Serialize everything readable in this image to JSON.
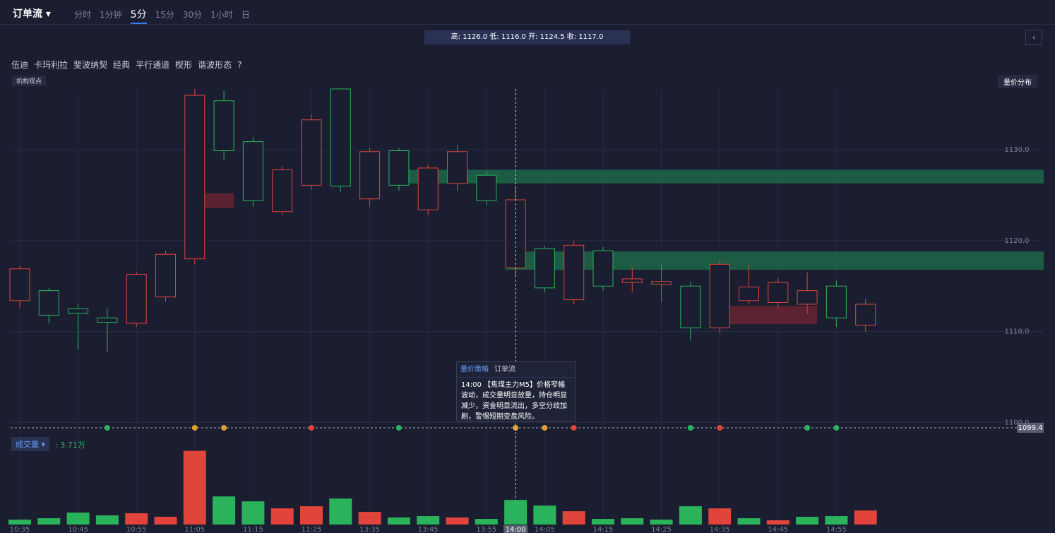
{
  "toolbar": {
    "title": "订单流",
    "periods": [
      "分时",
      "1分钟",
      "5分",
      "15分",
      "30分",
      "1小时",
      "日"
    ],
    "active": 2
  },
  "ohlc_text": "高: 1126.0 低: 1116.0 开: 1124.5 收: 1117.0",
  "tools": [
    "伍迪",
    "卡玛利拉",
    "斐波纳契",
    "经典",
    "平行通道",
    "楔形",
    "谐波形态"
  ],
  "badge": "机构观点",
  "distribution_button": "量价分布",
  "chart_data": [
    {
      "type": "candlestick",
      "categories": [
        "10:35",
        null,
        "10:45",
        null,
        "10:55",
        null,
        "11:05",
        null,
        "11:15",
        null,
        "11:25",
        null,
        "13:35",
        null,
        "13:45",
        null,
        "13:55",
        "14:00",
        "14:05",
        null,
        "14:15",
        null,
        "14:25",
        null,
        "14:35",
        null,
        "14:45",
        null,
        "14:55",
        null
      ],
      "open": [
        1116.9,
        1111.8,
        1112.0,
        1111.0,
        1116.3,
        1118.5,
        1136.0,
        1129.9,
        1124.4,
        1127.8,
        1133.3,
        1126.0,
        1129.8,
        1126.1,
        1128.0,
        1129.8,
        1124.4,
        1124.5,
        1114.8,
        1119.5,
        1115.0,
        1115.8,
        1115.5,
        1110.4,
        1117.4,
        1114.9,
        1115.4,
        1114.5,
        1111.5,
        1113.0
      ],
      "high": [
        1117.2,
        1114.8,
        1113.0,
        1112.5,
        1116.6,
        1118.9,
        1136.7,
        1136.5,
        1131.4,
        1128.2,
        1133.9,
        1136.8,
        1130.2,
        1130.2,
        1128.4,
        1130.5,
        1127.6,
        1126.0,
        1119.4,
        1120.0,
        1119.3,
        1117.0,
        1117.5,
        1115.5,
        1118.0,
        1117.3,
        1115.9,
        1116.5,
        1115.6,
        1113.6
      ],
      "low": [
        1112.6,
        1110.9,
        1108.0,
        1107.8,
        1110.5,
        1113.3,
        1117.4,
        1128.9,
        1123.8,
        1122.8,
        1125.6,
        1125.4,
        1123.7,
        1125.5,
        1122.8,
        1125.5,
        1123.9,
        1116.0,
        1114.3,
        1113.0,
        1114.5,
        1114.3,
        1113.2,
        1109.0,
        1109.8,
        1113.0,
        1112.5,
        1111.9,
        1110.5,
        1110.0
      ],
      "close": [
        1113.4,
        1114.5,
        1112.5,
        1111.5,
        1110.9,
        1113.8,
        1118.0,
        1135.4,
        1130.9,
        1123.2,
        1126.1,
        1136.7,
        1124.6,
        1129.9,
        1123.4,
        1126.3,
        1127.2,
        1117.0,
        1119.1,
        1113.5,
        1118.9,
        1115.4,
        1115.2,
        1115.0,
        1110.4,
        1113.4,
        1113.2,
        1113.0,
        1115.0,
        1110.7
      ],
      "up_color": "#2bb35b",
      "down_color": "#e0443a",
      "ylim": [
        1098.7,
        1136.7
      ],
      "yticks": [
        {
          "value": 1100,
          "label": "1100.0"
        },
        {
          "value": 1110,
          "label": "1110.0"
        },
        {
          "value": 1120,
          "label": "1120.0"
        },
        {
          "value": 1130,
          "label": "1130.0"
        }
      ],
      "last_price": 1099.4,
      "zones": [
        {
          "from": 1126.3,
          "to": 1127.8,
          "start": 13,
          "end": 29,
          "color": "#1e6b4a"
        },
        {
          "from": 1116.8,
          "to": 1118.8,
          "start": 17,
          "end": 29,
          "color": "#1e6b4a"
        },
        {
          "from": 1123.6,
          "to": 1125.2,
          "start": 6,
          "end": 7,
          "color": "#6b2332"
        },
        {
          "from": 1110.8,
          "to": 1112.8,
          "start": 24,
          "end": 27,
          "color": "#6b2332"
        }
      ],
      "signals": [
        {
          "index": 3,
          "color": "#2bb35b"
        },
        {
          "index": 6,
          "color": "#e0a030"
        },
        {
          "index": 7,
          "color": "#e0a030"
        },
        {
          "index": 10,
          "color": "#e0443a"
        },
        {
          "index": 13,
          "color": "#2bb35b"
        },
        {
          "index": 17,
          "color": "#e0a030"
        },
        {
          "index": 18,
          "color": "#e0a030"
        },
        {
          "index": 19,
          "color": "#e0443a"
        },
        {
          "index": 23,
          "color": "#2bb35b"
        },
        {
          "index": 24,
          "color": "#e0443a"
        },
        {
          "index": 27,
          "color": "#2bb35b"
        },
        {
          "index": 28,
          "color": "#2bb35b"
        }
      ],
      "crosshair": 17
    },
    {
      "type": "bar",
      "name": "成交量",
      "value_text": ": 3.71万",
      "values": [
        0.74,
        0.95,
        1.8,
        1.38,
        1.7,
        1.17,
        11.13,
        4.24,
        3.5,
        2.44,
        2.76,
        3.92,
        1.91,
        1.06,
        1.27,
        1.06,
        0.85,
        3.71,
        2.86,
        2.01,
        0.85,
        0.95,
        0.74,
        2.76,
        2.44,
        0.95,
        0.64,
        1.17,
        1.27,
        2.12
      ],
      "colors": [
        "#2bb35b",
        "#2bb35b",
        "#2bb35b",
        "#2bb35b",
        "#e0443a",
        "#e0443a",
        "#e0443a",
        "#2bb35b",
        "#2bb35b",
        "#e0443a",
        "#e0443a",
        "#2bb35b",
        "#e0443a",
        "#2bb35b",
        "#2bb35b",
        "#e0443a",
        "#2bb35b",
        "#2bb35b",
        "#2bb35b",
        "#e0443a",
        "#2bb35b",
        "#2bb35b",
        "#2bb35b",
        "#2bb35b",
        "#e0443a",
        "#2bb35b",
        "#e0443a",
        "#2bb35b",
        "#2bb35b",
        "#e0443a"
      ],
      "ylim": [
        0,
        11.3
      ]
    }
  ],
  "tooltip": {
    "tabs": [
      "量价策略",
      "订单流"
    ],
    "time": "14:00",
    "text": "【焦煤主力M5】价格窄幅波动，成交量明显放量，持仓明显减少，资金明显流出，多空分歧加剧，警惕短期变盘风险。"
  }
}
